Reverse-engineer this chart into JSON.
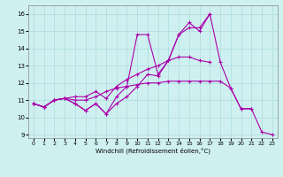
{
  "xlabel": "Windchill (Refroidissement éolien,°C)",
  "ylabel": "",
  "background_color": "#cff0f0",
  "grid_color": "#aadddd",
  "line_color": "#aa00aa",
  "xlim": [
    -0.5,
    23.5
  ],
  "ylim": [
    8.8,
    16.5
  ],
  "yticks": [
    9,
    10,
    11,
    12,
    13,
    14,
    15,
    16
  ],
  "xtick_labels": [
    "0",
    "1",
    "2",
    "3",
    "4",
    "5",
    "6",
    "7",
    "8",
    "9",
    "10",
    "11",
    "12",
    "13",
    "14",
    "15",
    "16",
    "17",
    "18",
    "19",
    "20",
    "21",
    "22",
    "23"
  ],
  "xticks": [
    0,
    1,
    2,
    3,
    4,
    5,
    6,
    7,
    8,
    9,
    10,
    11,
    12,
    13,
    14,
    15,
    16,
    17,
    18,
    19,
    20,
    21,
    22,
    23
  ],
  "series": [
    [
      10.8,
      10.6,
      11.0,
      11.1,
      10.8,
      10.4,
      10.8,
      10.2,
      10.8,
      11.2,
      11.8,
      12.5,
      12.4,
      13.3,
      14.8,
      15.2,
      15.2,
      16.0,
      13.2,
      11.7,
      10.5,
      10.5,
      9.15,
      9.0
    ],
    [
      10.8,
      10.6,
      11.0,
      11.1,
      10.8,
      10.4,
      10.8,
      10.2,
      11.2,
      11.8,
      14.8,
      14.8,
      12.5,
      13.3,
      14.8,
      15.5,
      15.0,
      16.0,
      null,
      null,
      null,
      null,
      null,
      null
    ],
    [
      10.8,
      10.6,
      11.0,
      11.1,
      11.2,
      11.2,
      11.5,
      11.1,
      11.8,
      12.2,
      12.5,
      12.8,
      13.0,
      13.3,
      13.5,
      13.5,
      13.3,
      13.2,
      null,
      null,
      null,
      null,
      null,
      null
    ],
    [
      10.8,
      10.6,
      11.0,
      11.1,
      11.0,
      11.0,
      11.2,
      11.5,
      11.7,
      11.8,
      11.9,
      12.0,
      12.0,
      12.1,
      12.1,
      12.1,
      12.1,
      12.1,
      12.1,
      11.7,
      10.5,
      10.5,
      null,
      null
    ]
  ]
}
